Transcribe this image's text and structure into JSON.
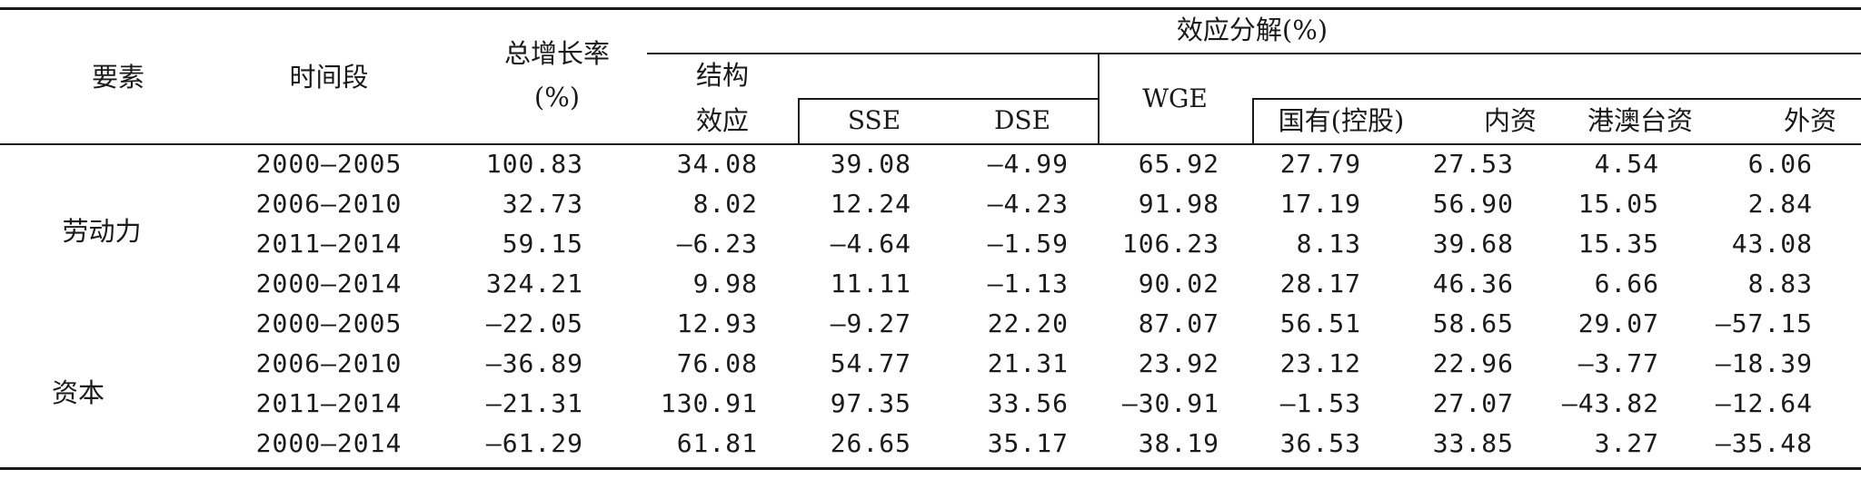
{
  "headers": {
    "element": "要素",
    "period": "时间段",
    "total_growth_line1": "总增长率",
    "total_growth_line2": "(%)",
    "effect_decomposition": "效应分解(%)",
    "structure_line1": "结构",
    "structure_line2": "效应",
    "sse": "SSE",
    "dse": "DSE",
    "wge": "WGE",
    "state_owned": "国有(控股)",
    "domestic": "内资",
    "hk_macau_taiwan": "港澳台资",
    "foreign": "外资"
  },
  "groups": [
    {
      "label": "劳动力"
    },
    {
      "label": "资本"
    }
  ],
  "rows": [
    [
      "2000—2005",
      "100.83",
      "34.08",
      "39.08",
      "—4.99",
      "65.92",
      "27.79",
      "27.53",
      "4.54",
      "6.06"
    ],
    [
      "2006—2010",
      "32.73",
      "8.02",
      "12.24",
      "—4.23",
      "91.98",
      "17.19",
      "56.90",
      "15.05",
      "2.84"
    ],
    [
      "2011—2014",
      "59.15",
      "—6.23",
      "—4.64",
      "—1.59",
      "106.23",
      "8.13",
      "39.68",
      "15.35",
      "43.08"
    ],
    [
      "2000—2014",
      "324.21",
      "9.98",
      "11.11",
      "—1.13",
      "90.02",
      "28.17",
      "46.36",
      "6.66",
      "8.83"
    ],
    [
      "2000—2005",
      "—22.05",
      "12.93",
      "—9.27",
      "22.20",
      "87.07",
      "56.51",
      "58.65",
      "29.07",
      "—57.15"
    ],
    [
      "2006—2010",
      "—36.89",
      "76.08",
      "54.77",
      "21.31",
      "23.92",
      "23.12",
      "22.96",
      "—3.77",
      "—18.39"
    ],
    [
      "2011—2014",
      "—21.31",
      "130.91",
      "97.35",
      "33.56",
      "—30.91",
      "—1.53",
      "27.07",
      "—43.82",
      "—12.64"
    ],
    [
      "2000—2014",
      "—61.29",
      "61.81",
      "26.65",
      "35.17",
      "38.19",
      "36.53",
      "33.85",
      "3.27",
      "—35.48"
    ]
  ]
}
